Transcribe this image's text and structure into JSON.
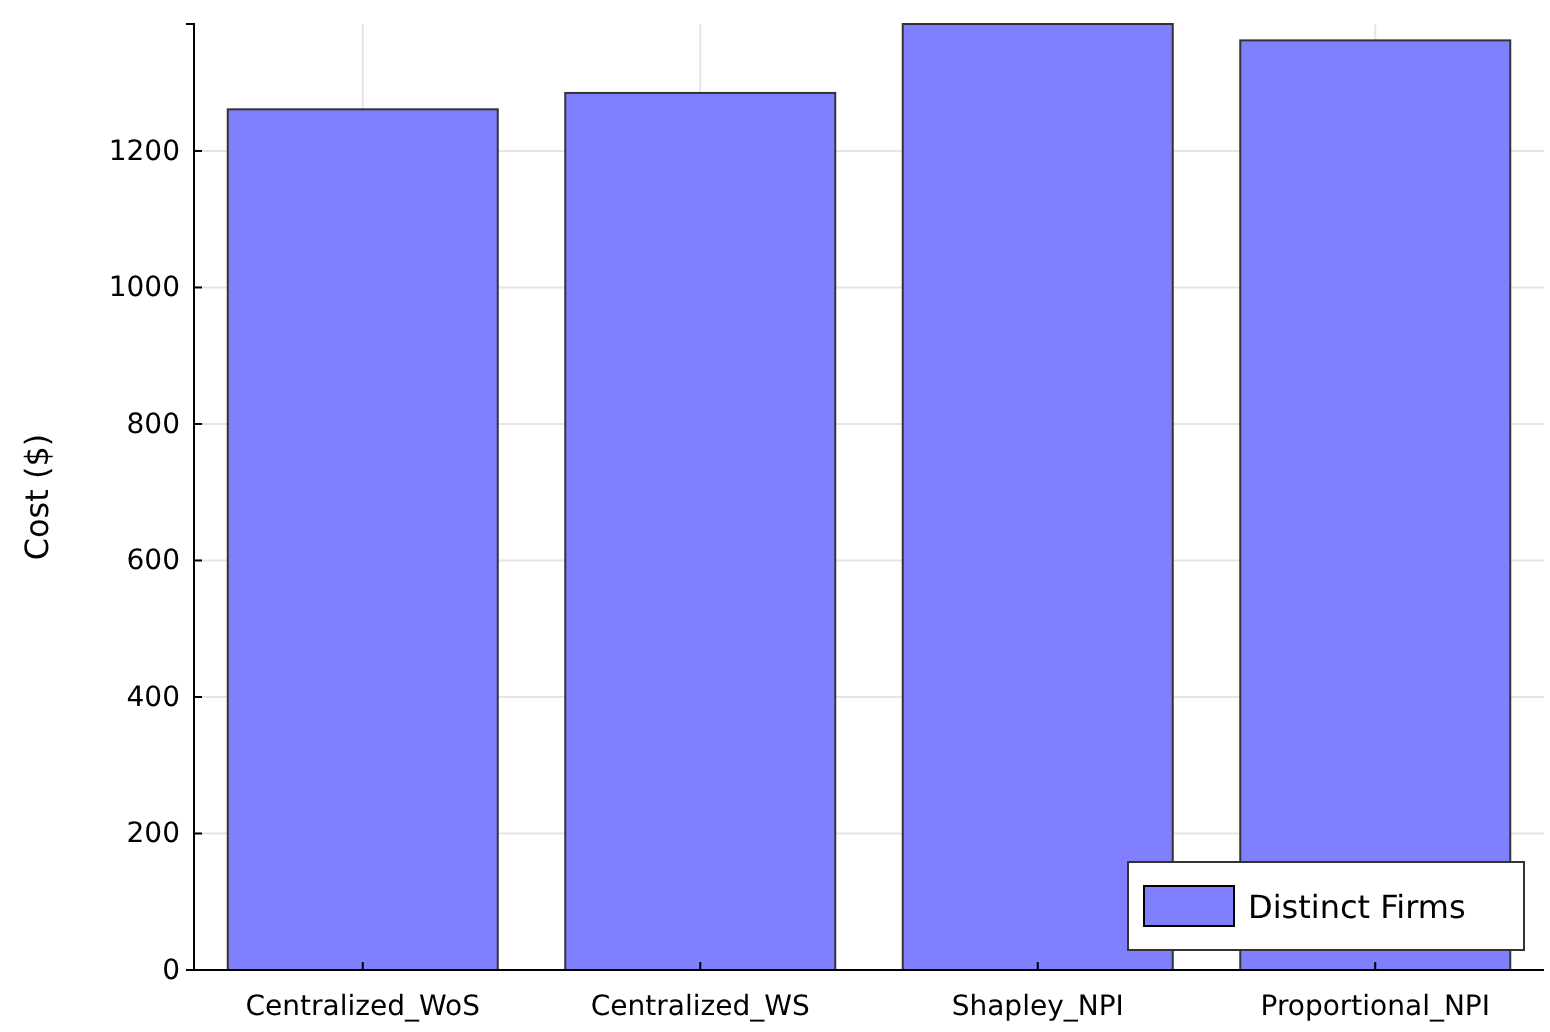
{
  "chart_data": {
    "type": "bar",
    "ylabel": "Cost ($)",
    "categories": [
      "Centralized_WoS",
      "Centralized_WS",
      "Shapley_NPI",
      "Proportional_NPI"
    ],
    "series": [
      {
        "name": "Distinct Firms",
        "color": "#8080ff",
        "values": [
          1261,
          1285,
          1386,
          1362
        ]
      }
    ],
    "ylim": [
      0,
      1386
    ],
    "yticks": [
      0,
      200,
      400,
      600,
      800,
      1000,
      1200
    ],
    "grid": true,
    "legend": "bottom right"
  }
}
